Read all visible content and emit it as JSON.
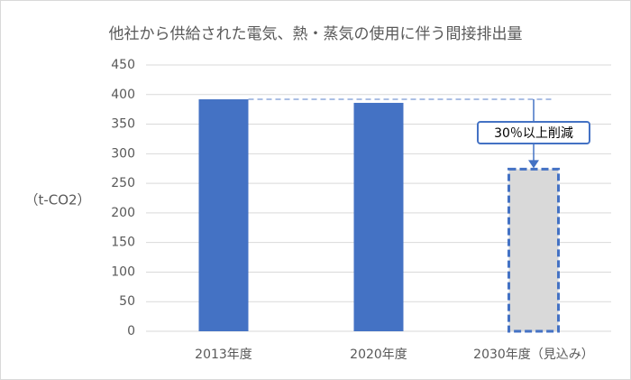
{
  "chart_data": {
    "type": "bar",
    "title": "他社から供給された電気、熱・蒸気の使用に伴う間接排出量",
    "y_label": "（t-CO2）",
    "categories": [
      "2013年度",
      "2020年度",
      "2030年度（見込み）"
    ],
    "values": [
      392,
      386,
      274
    ],
    "colors": [
      "#4472c4",
      "#4472c4",
      "#d9d9d9"
    ],
    "dashed": [
      false,
      false,
      true
    ],
    "annotation": "30％以上削減",
    "ylim": [
      0,
      450
    ],
    "yticks": [
      0,
      50,
      100,
      150,
      200,
      250,
      300,
      350,
      400,
      450
    ],
    "grid": true
  }
}
